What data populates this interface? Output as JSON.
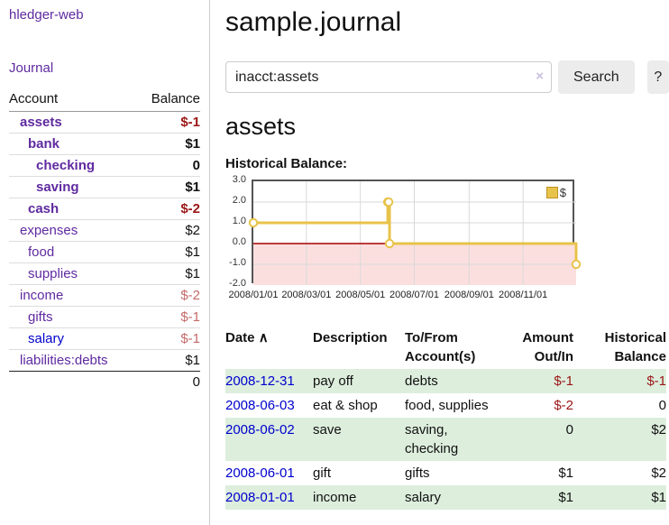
{
  "app": {
    "brand": "hledger-web",
    "nav_journal": "Journal"
  },
  "sidebar": {
    "col_account": "Account",
    "col_balance": "Balance",
    "accounts": [
      {
        "name": "assets",
        "balance": "$-1"
      },
      {
        "name": "bank",
        "balance": "$1"
      },
      {
        "name": "checking",
        "balance": "0"
      },
      {
        "name": "saving",
        "balance": "$1"
      },
      {
        "name": "cash",
        "balance": "$-2"
      },
      {
        "name": "expenses",
        "balance": "$2"
      },
      {
        "name": "food",
        "balance": "$1"
      },
      {
        "name": "supplies",
        "balance": "$1"
      },
      {
        "name": "income",
        "balance": "$-2"
      },
      {
        "name": "gifts",
        "balance": "$-1"
      },
      {
        "name": "salary",
        "balance": "$-1"
      },
      {
        "name": "liabilities:debts",
        "balance": "$1"
      }
    ],
    "total": "0"
  },
  "header": {
    "title": "sample.journal"
  },
  "search": {
    "value": "inacct:assets",
    "clear_icon": "×",
    "button_label": "Search",
    "help_label": "?"
  },
  "account_page": {
    "heading": "assets",
    "chart_title": "Historical Balance:"
  },
  "chart_data": {
    "type": "line",
    "title": "Historical Balance:",
    "series": [
      {
        "name": "$",
        "points": [
          [
            "2008-01-01",
            1
          ],
          [
            "2008-06-01",
            2
          ],
          [
            "2008-06-02",
            2
          ],
          [
            "2008-06-03",
            0
          ],
          [
            "2008-12-31",
            -1
          ]
        ]
      }
    ],
    "x_range": [
      "2008-01-01",
      "2008-12-31"
    ],
    "ylim": [
      -2,
      3
    ],
    "y_ticks": [
      "3.0",
      "2.0",
      "1.0",
      "0.0",
      "-1.0",
      "-2.0"
    ],
    "x_ticks": [
      "2008/01/01",
      "2008/03/01",
      "2008/05/01",
      "2008/07/01",
      "2008/09/01",
      "2008/11/01"
    ],
    "line_color": "#e8c34a",
    "marker_fill": "#ffffff",
    "negative_region_fill": "#fbdfdf",
    "zero_line_color": "#aa0000",
    "grid_color": "#d9d9d9",
    "legend": {
      "label": "$",
      "position": "top-right"
    }
  },
  "register": {
    "columns": {
      "date": "Date",
      "sort_asc_icon": "∧",
      "description": "Description",
      "account_l1": "To/From",
      "account_l2": "Account(s)",
      "amount_l1": "Amount",
      "amount_l2": "Out/In",
      "balance_l1": "Historical",
      "balance_l2": "Balance"
    },
    "rows": [
      {
        "date": "2008-12-31",
        "description": "pay off",
        "accounts": "debts",
        "amount": "$-1",
        "balance": "$-1"
      },
      {
        "date": "2008-06-03",
        "description": "eat & shop",
        "accounts": "food, supplies",
        "amount": "$-2",
        "balance": "0"
      },
      {
        "date": "2008-06-02",
        "description": "save",
        "accounts": "saving, checking",
        "amount": "0",
        "balance": "$2"
      },
      {
        "date": "2008-06-01",
        "description": "gift",
        "accounts": "gifts",
        "amount": "$1",
        "balance": "$2"
      },
      {
        "date": "2008-01-01",
        "description": "income",
        "accounts": "salary",
        "amount": "$1",
        "balance": "$1"
      }
    ]
  },
  "colors": {
    "link_purple": "#5f2aa0",
    "link_blue": "#0000cc",
    "negative_strong": "#9b1616",
    "negative_soft": "#c46a6a",
    "row_green": "#ddeedd",
    "chart_gold": "#e8c34a",
    "chart_pink": "#fbdfdf"
  }
}
